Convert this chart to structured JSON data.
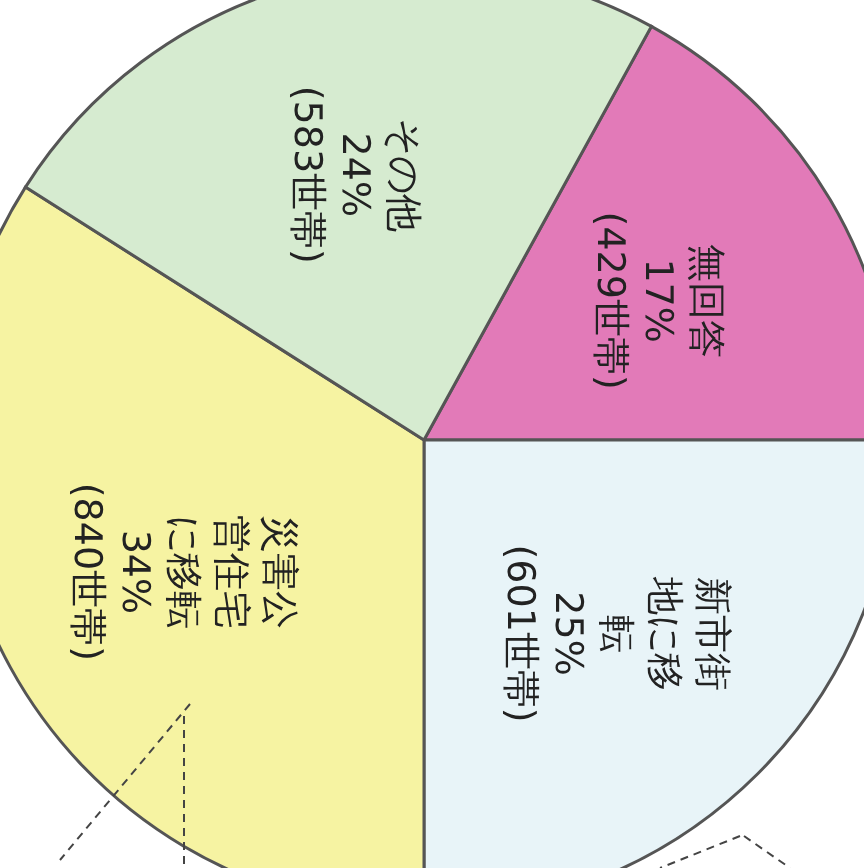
{
  "chart_data": {
    "type": "pie",
    "categories": [
      "無回答",
      "新市街地に移転",
      "災害公営住宅に移転",
      "その他"
    ],
    "values": [
      17,
      25,
      34,
      24
    ],
    "value_labels": [
      "17%\n(429世帯)",
      "25%\n(601世帯)",
      "34%\n(840世帯)",
      "24%\n(583世帯)"
    ],
    "colors": [
      "#e27ab8",
      "#e8f4f8",
      "#f6f3a2",
      "#d6ebd0"
    ]
  }
}
